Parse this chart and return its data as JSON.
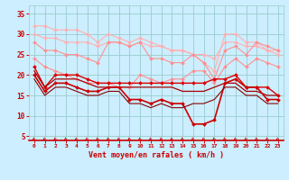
{
  "x": [
    0,
    1,
    2,
    3,
    4,
    5,
    6,
    7,
    8,
    9,
    10,
    11,
    12,
    13,
    14,
    15,
    16,
    17,
    18,
    19,
    20,
    21,
    22,
    23
  ],
  "series": [
    {
      "name": "rafales_top",
      "color": "#ffb0b0",
      "linewidth": 0.8,
      "marker": "D",
      "markersize": 2.0,
      "values": [
        32,
        32,
        31,
        31,
        31,
        30,
        28,
        30,
        29,
        28,
        29,
        28,
        27,
        26,
        26,
        25,
        23,
        21,
        30,
        30,
        28,
        28,
        26,
        25
      ]
    },
    {
      "name": "rafales_upper",
      "color": "#ffb0b0",
      "linewidth": 0.8,
      "marker": "D",
      "markersize": 2.0,
      "values": [
        30,
        29,
        29,
        28,
        28,
        28,
        27,
        28,
        28,
        27,
        28,
        27,
        27,
        26,
        26,
        25,
        25,
        24,
        28,
        28,
        27,
        27,
        26,
        26
      ]
    },
    {
      "name": "rafales_mid",
      "color": "#ff9090",
      "linewidth": 0.8,
      "marker": "D",
      "markersize": 2.0,
      "values": [
        28,
        26,
        26,
        25,
        25,
        24,
        23,
        28,
        28,
        27,
        28,
        24,
        24,
        23,
        23,
        25,
        23,
        19,
        26,
        27,
        25,
        28,
        27,
        26
      ]
    },
    {
      "name": "rafales_lower",
      "color": "#ff9090",
      "linewidth": 0.8,
      "marker": "D",
      "markersize": 2.0,
      "values": [
        24,
        22,
        21,
        20,
        19,
        18,
        18,
        18,
        17,
        17,
        20,
        19,
        18,
        19,
        19,
        21,
        21,
        18,
        22,
        24,
        22,
        24,
        23,
        22
      ]
    },
    {
      "name": "vent_top",
      "color": "#dd0000",
      "linewidth": 1.0,
      "marker": "D",
      "markersize": 2.0,
      "values": [
        22,
        17,
        20,
        20,
        20,
        19,
        18,
        18,
        18,
        18,
        18,
        18,
        18,
        18,
        18,
        18,
        18,
        19,
        19,
        20,
        17,
        17,
        17,
        15
      ]
    },
    {
      "name": "vent_upper",
      "color": "#aa0000",
      "linewidth": 0.9,
      "marker": null,
      "markersize": 0,
      "values": [
        21,
        17,
        19,
        19,
        19,
        18,
        17,
        17,
        17,
        17,
        17,
        17,
        17,
        17,
        16,
        16,
        16,
        17,
        18,
        18,
        16,
        16,
        15,
        15
      ]
    },
    {
      "name": "vent_mid",
      "color": "#cc0000",
      "linewidth": 1.2,
      "marker": "D",
      "markersize": 2.0,
      "values": [
        20,
        16,
        18,
        18,
        17,
        16,
        16,
        17,
        17,
        14,
        14,
        13,
        14,
        13,
        13,
        8,
        8,
        9,
        18,
        19,
        17,
        17,
        14,
        14
      ]
    },
    {
      "name": "vent_lower",
      "color": "#880000",
      "linewidth": 0.8,
      "marker": null,
      "markersize": 0,
      "values": [
        19,
        15,
        17,
        17,
        16,
        15,
        15,
        16,
        16,
        13,
        13,
        12,
        13,
        12,
        12,
        13,
        13,
        14,
        17,
        17,
        15,
        15,
        13,
        13
      ]
    }
  ],
  "ylim": [
    4,
    37
  ],
  "yticks": [
    5,
    10,
    15,
    20,
    25,
    30,
    35
  ],
  "xlim": [
    -0.5,
    23.5
  ],
  "xlabel": "Vent moyen/en rafales ( km/h )",
  "background_color": "#cceeff",
  "grid_color": "#99cccc",
  "xlabel_color": "#cc0000",
  "tick_color": "#cc0000",
  "arrow_color": "#cc0000",
  "spine_color": "#cc0000"
}
